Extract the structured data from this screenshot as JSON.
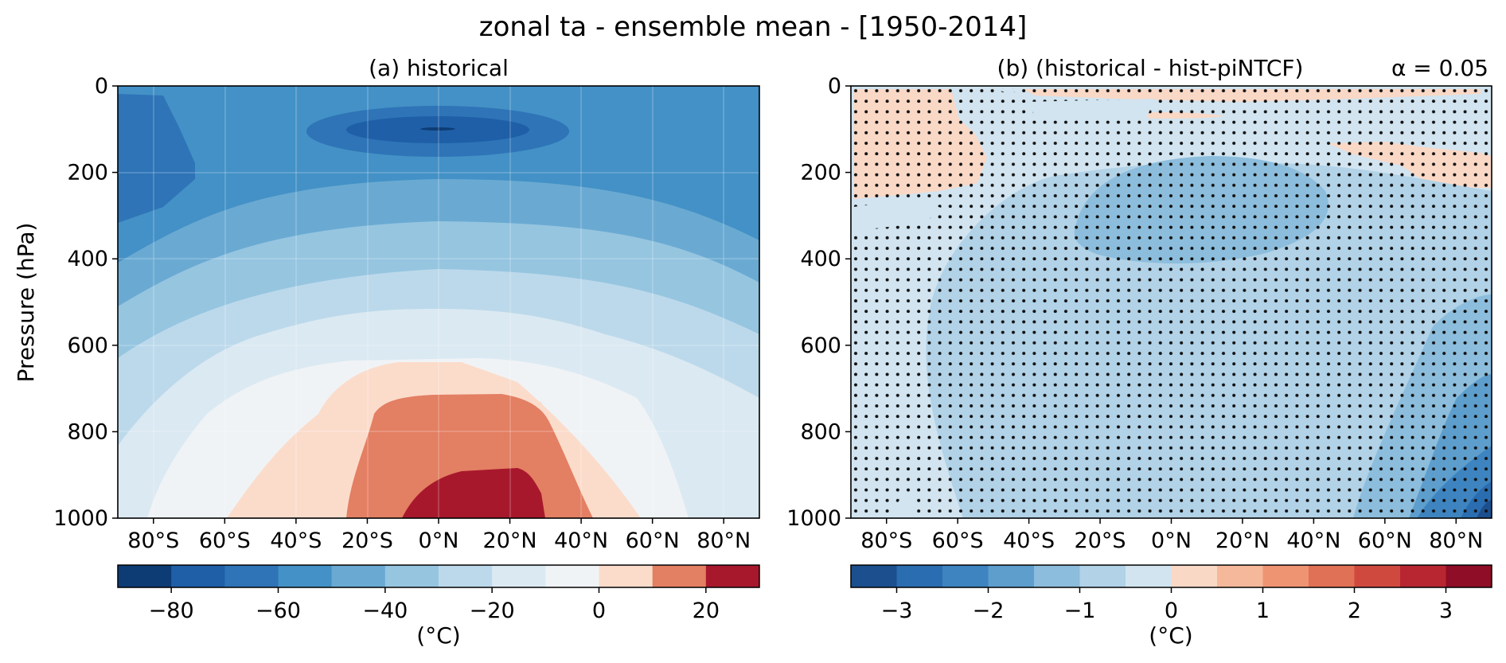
{
  "figure": {
    "title": "zonal ta - ensemble mean - [1950-2014]"
  },
  "chart_data": [
    {
      "type": "heatmap",
      "subtitle": "(a) historical",
      "ylabel": "Pressure (hPa)",
      "y_ticks": [
        0,
        200,
        400,
        600,
        800,
        1000
      ],
      "y_tick_labels": [
        "0",
        "200",
        "400",
        "600",
        "800",
        "1000"
      ],
      "ylim": [
        1000,
        0
      ],
      "x_ticks": [
        -80,
        -60,
        -40,
        -20,
        0,
        20,
        40,
        60,
        80
      ],
      "x_tick_labels": [
        "80°S",
        "60°S",
        "40°S",
        "20°S",
        "0°N",
        "20°N",
        "40°N",
        "60°N",
        "80°N"
      ],
      "xlim": [
        -90,
        90
      ],
      "grid": true,
      "colorbar": {
        "levels": [
          -90,
          -80,
          -70,
          -60,
          -50,
          -40,
          -30,
          -20,
          -10,
          0,
          10,
          20,
          30
        ],
        "colors": [
          "#0d3c75",
          "#1f5fa7",
          "#2e74b7",
          "#4391c6",
          "#6aaad2",
          "#96c5e0",
          "#bcd9eb",
          "#dbe9f2",
          "#f0f3f6",
          "#fbdccb",
          "#e37f63",
          "#a8182c"
        ],
        "ticks": [
          -80,
          -60,
          -40,
          -20,
          0,
          20
        ],
        "tick_labels": [
          "−80",
          "−60",
          "−40",
          "−20",
          "0",
          "20"
        ],
        "label": "(°C)"
      },
      "fields": [
        "zonal mean air temperature"
      ]
    },
    {
      "type": "heatmap",
      "subtitle": "(b) (historical - hist-piNTCF)",
      "annotation": "α = 0.05",
      "y_ticks": [
        0,
        200,
        400,
        600,
        800,
        1000
      ],
      "y_tick_labels": [
        "0",
        "200",
        "400",
        "600",
        "800",
        "1000"
      ],
      "ylim": [
        1000,
        0
      ],
      "x_ticks": [
        -80,
        -60,
        -40,
        -20,
        0,
        20,
        40,
        60,
        80
      ],
      "x_tick_labels": [
        "80°S",
        "60°S",
        "40°S",
        "20°S",
        "0°N",
        "20°N",
        "40°N",
        "60°N",
        "80°N"
      ],
      "xlim": [
        -90,
        90
      ],
      "grid": false,
      "stippling": "dots mark significance at α = 0.05",
      "colorbar": {
        "levels": [
          -3.5,
          -3,
          -2.5,
          -2,
          -1.5,
          -1,
          -0.5,
          0,
          0.5,
          1,
          1.5,
          2,
          2.5,
          3,
          3.5
        ],
        "colors": [
          "#1c4f8e",
          "#2a6db0",
          "#3d84c0",
          "#5d9ecd",
          "#8cbddc",
          "#b1d2e7",
          "#d1e4f0",
          "#fad8c6",
          "#f6b89a",
          "#ef9473",
          "#e07156",
          "#d0493f",
          "#b82632",
          "#8f0d26"
        ],
        "ticks": [
          -3,
          -2,
          -1,
          0,
          1,
          2,
          3
        ],
        "tick_labels": [
          "−3",
          "−2",
          "−1",
          "0",
          "1",
          "2",
          "3"
        ],
        "label": "(°C)"
      }
    }
  ]
}
